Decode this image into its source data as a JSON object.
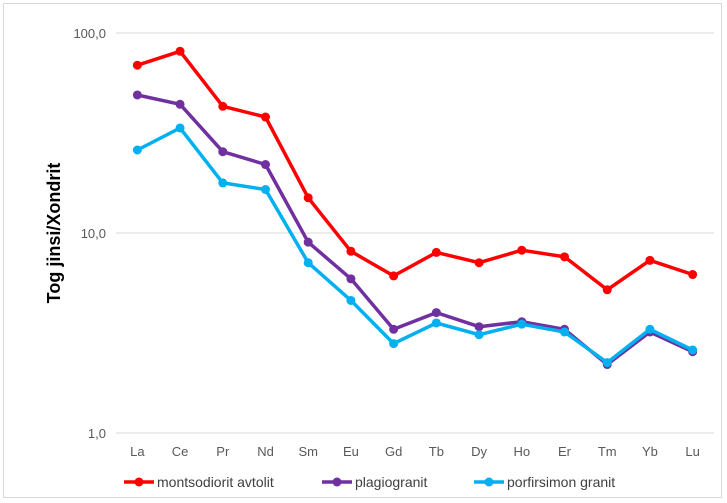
{
  "chart_data": {
    "type": "line",
    "title": "",
    "xlabel": "",
    "ylabel": "Tog jinsi/Xondrit",
    "yscale": "log",
    "ylim": [
      1,
      100
    ],
    "ytick_labels": [
      "1,0",
      "10,0",
      "100,0"
    ],
    "ytick_values": [
      1,
      10,
      100
    ],
    "grid": "horizontal",
    "legend_position": "bottom",
    "categories": [
      "La",
      "Ce",
      "Pr",
      "Nd",
      "Sm",
      "Eu",
      "Gd",
      "Tb",
      "Dy",
      "Ho",
      "Er",
      "Tm",
      "Yb",
      "Lu"
    ],
    "series": [
      {
        "name": "montsodiorit avtolit",
        "color": "#ff0000",
        "values": [
          69,
          81,
          43,
          38,
          15,
          8.1,
          6.1,
          8.0,
          7.1,
          8.2,
          7.6,
          5.2,
          7.3,
          6.2
        ]
      },
      {
        "name": "plagiogranit",
        "color": "#7030a0",
        "values": [
          49,
          44,
          25.5,
          22,
          9.0,
          5.9,
          3.3,
          4.0,
          3.4,
          3.6,
          3.3,
          2.2,
          3.2,
          2.55
        ]
      },
      {
        "name": "porfirsimon granit",
        "color": "#00b0f0",
        "values": [
          26,
          33.5,
          17.8,
          16.5,
          7.1,
          4.6,
          2.8,
          3.55,
          3.1,
          3.5,
          3.2,
          2.25,
          3.3,
          2.6
        ]
      }
    ]
  }
}
